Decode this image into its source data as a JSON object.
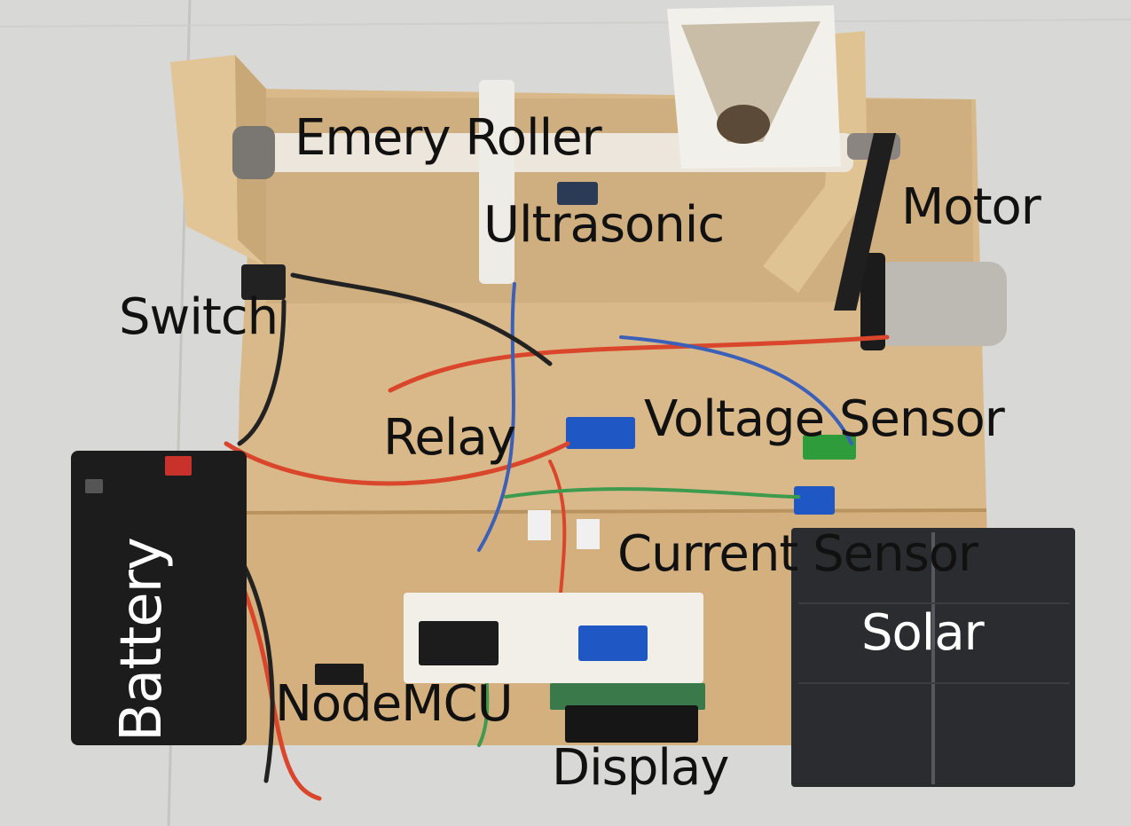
{
  "labels": {
    "emery_roller": "Emery Roller",
    "ultrasonic": "Ultrasonic",
    "motor": "Motor",
    "switch": "Switch",
    "relay": "Relay",
    "voltage_sensor": "Voltage Sensor",
    "current_sensor": "Current Sensor",
    "solar": "Solar",
    "nodemcu": "NodeMCU",
    "display": "Display",
    "battery": "Battery"
  },
  "colors": {
    "background": "#d8d8d6",
    "wood": "#d9b98a",
    "battery": "#1c1c1c",
    "solar_panel": "#2a2c2f",
    "relay_module": "#1f57c4",
    "voltage_module": "#2e9c3a",
    "breadboard": "#f1efe8",
    "wire_red": "#d9462b",
    "wire_blue": "#3c5fb8",
    "wire_black": "#222222",
    "wire_green": "#3d9a4e",
    "label_dark": "#111111",
    "label_light": "#ffffff"
  },
  "icons": {
    "emery_roller": "roller-icon",
    "motor": "motor-icon",
    "battery": "battery-icon",
    "solar": "solar-panel-icon",
    "display": "lcd-display-icon"
  }
}
